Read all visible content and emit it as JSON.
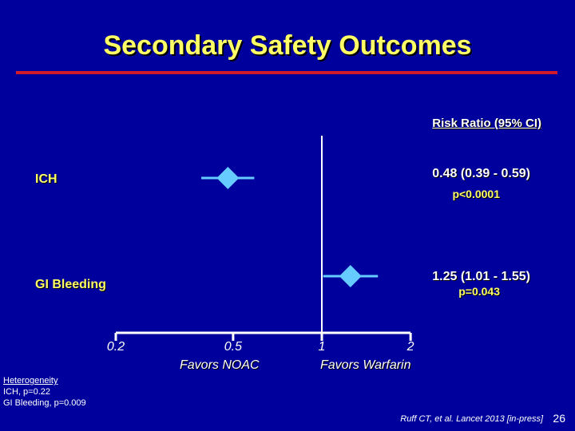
{
  "slide": {
    "title": "Secondary Safety Outcomes",
    "page_number": "26",
    "citation": "Ruff CT, et al. Lancet 2013 [in-press]",
    "heterogeneity": {
      "heading": "Heterogeneity",
      "lines": [
        "ICH, p=0.22",
        "GI Bleeding, p=0.009"
      ]
    }
  },
  "colors": {
    "background": "#00009c",
    "title": "#ffff66",
    "accent_rule": "#d11a2a",
    "marker": "#66ccff"
  },
  "chart_data": {
    "type": "forest",
    "scale": "log",
    "column_header": "Risk Ratio (95% CI)",
    "reference_line": 1,
    "xlim": [
      0.2,
      2
    ],
    "x_ticks": [
      "0.2",
      "0.5",
      "1",
      "2"
    ],
    "favors_left": "Favors NOAC",
    "favors_right": "Favors Warfarin",
    "rows": [
      {
        "label": "ICH",
        "estimate": 0.48,
        "ci": [
          0.39,
          0.59
        ],
        "ci_text": "0.48 (0.39 - 0.59)",
        "p_text": "p<0.0001"
      },
      {
        "label": "GI Bleeding",
        "estimate": 1.25,
        "ci": [
          1.01,
          1.55
        ],
        "ci_text": "1.25 (1.01 - 1.55)",
        "p_text": "p=0.043"
      }
    ]
  }
}
